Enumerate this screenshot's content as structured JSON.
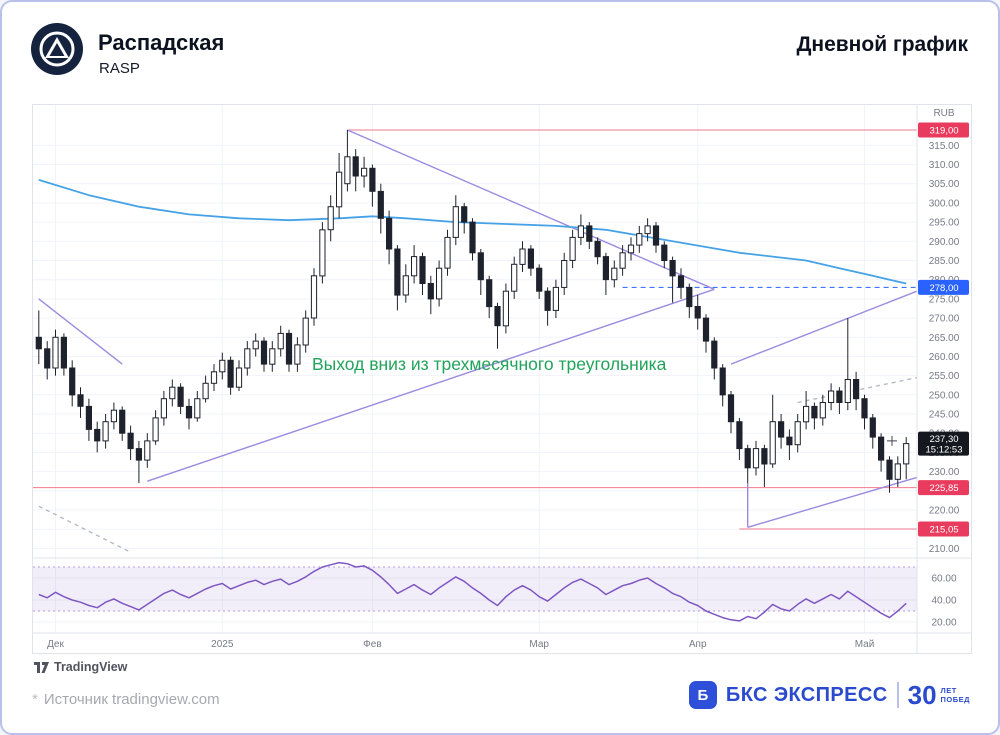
{
  "header": {
    "title": "Распадская",
    "ticker": "RASP",
    "chart_type": "Дневной график"
  },
  "watermark": {
    "label": "TradingView"
  },
  "footer": {
    "asterisk": "*",
    "source": "Источник tradingview.com",
    "brand": {
      "icon_letter": "Б",
      "name": "БКС ЭКСПРЕСС",
      "years": "30",
      "caption_line1": "ЛЕТ",
      "caption_line2": "ПОБЕД"
    }
  },
  "colors": {
    "grid": "#f0f3fa",
    "border": "#e0e3eb",
    "candle": "#1e222d",
    "ma": "#46a2e6",
    "trend": "#9c8be0",
    "dash_gray": "#b6b9c4",
    "level_red": "#f2798c",
    "badge_red": "#e93b5d",
    "level_blue": "#2962ff",
    "badge_dark": "#16181f",
    "indicator": "#7e57c2",
    "band_line": "#b39ddb",
    "band_fill": "rgba(126,87,194,0.10)",
    "annotation_green": "#22a35b",
    "axis_text": "#787b86",
    "page_border": "#b9c0ea",
    "brand_blue": "#2b4bce"
  },
  "chart_data": {
    "type": "candlestick",
    "symbol": "RASP",
    "timeframe": "Дневной график",
    "currency_unit": "RUB",
    "price_ylim": [
      207.5,
      325.5
    ],
    "price_axis": {
      "tick_start": 210,
      "tick_end": 315,
      "tick_step": 5,
      "unit": "RUB"
    },
    "annotation": {
      "text": "Выход вниз из трехмесячного треугольника",
      "i": 54,
      "price": 256.5,
      "color": "#22a35b"
    },
    "crosshair": {
      "i": 102.3,
      "price": 238
    },
    "price_labels": [
      {
        "value": "319,00",
        "price": 319,
        "type": "red"
      },
      {
        "value": "278,00",
        "price": 278,
        "type": "blue"
      },
      {
        "value": "237,30",
        "price": 237.3,
        "type": "current",
        "countdown": "15:12:53"
      },
      {
        "value": "225,85",
        "price": 225.85,
        "type": "red"
      },
      {
        "value": "215,05",
        "price": 215.05,
        "type": "red"
      }
    ],
    "hlines": [
      {
        "price": 319,
        "from": 37,
        "to": 999,
        "color": "red",
        "dash": false
      },
      {
        "price": 278,
        "from": 70,
        "to": 999,
        "color": "blue",
        "dash": true
      },
      {
        "price": 225.85,
        "from": -1,
        "to": 999,
        "color": "red",
        "dash": false
      },
      {
        "price": 215.05,
        "from": 84,
        "to": 999,
        "color": "red",
        "dash": false
      }
    ],
    "trendlines": [
      {
        "i1": 37,
        "p1": 319,
        "i2": 81,
        "p2": 277.5,
        "style": "solid"
      },
      {
        "i1": 13,
        "p1": 227.5,
        "i2": 81,
        "p2": 277.5,
        "style": "solid"
      },
      {
        "i1": 83,
        "p1": 258,
        "i2": 106,
        "p2": 277,
        "style": "solid"
      },
      {
        "i1": 85,
        "p1": 215.5,
        "i2": 106,
        "p2": 228.5,
        "style": "solid"
      },
      {
        "i1": 85,
        "p1": 227,
        "i2": 85,
        "p2": 215.5,
        "style": "solid"
      },
      {
        "i1": 0,
        "p1": 275,
        "i2": 10,
        "p2": 258,
        "style": "solid"
      },
      {
        "i1": 0,
        "p1": 221,
        "i2": 11,
        "p2": 209,
        "style": "dashed-gray"
      },
      {
        "i1": 91,
        "p1": 248,
        "i2": 106,
        "p2": 254.5,
        "style": "dashed-gray"
      }
    ],
    "ma": [
      [
        0,
        306
      ],
      [
        6,
        302
      ],
      [
        12,
        299
      ],
      [
        18,
        297
      ],
      [
        24,
        296
      ],
      [
        30,
        295.5
      ],
      [
        36,
        296
      ],
      [
        40,
        296.5
      ],
      [
        44,
        296
      ],
      [
        50,
        295
      ],
      [
        56,
        294.5
      ],
      [
        62,
        294
      ],
      [
        68,
        293
      ],
      [
        72,
        291.5
      ],
      [
        76,
        290
      ],
      [
        80,
        288.5
      ],
      [
        84,
        287
      ],
      [
        88,
        286
      ],
      [
        92,
        285
      ],
      [
        96,
        283
      ],
      [
        100,
        281
      ],
      [
        102,
        280
      ],
      [
        104,
        279
      ]
    ],
    "time_labels": [
      {
        "label": "Дек",
        "i": 2
      },
      {
        "label": "2025",
        "i": 22
      },
      {
        "label": "Фев",
        "i": 40
      },
      {
        "label": "Мар",
        "i": 60
      },
      {
        "label": "Апр",
        "i": 79
      },
      {
        "label": "Май",
        "i": 99
      }
    ],
    "candles": [
      [
        265,
        272,
        258,
        262
      ],
      [
        262,
        264,
        254,
        257
      ],
      [
        257,
        267,
        255,
        265
      ],
      [
        265,
        266,
        255,
        257
      ],
      [
        257,
        259,
        247,
        250
      ],
      [
        250,
        252,
        244,
        247
      ],
      [
        247,
        249,
        238,
        241
      ],
      [
        241,
        243,
        235,
        238
      ],
      [
        238,
        245,
        236,
        243
      ],
      [
        243,
        248,
        241,
        246
      ],
      [
        246,
        247,
        238,
        240
      ],
      [
        240,
        242,
        233,
        236
      ],
      [
        236,
        238,
        227,
        233
      ],
      [
        233,
        240,
        231,
        238
      ],
      [
        238,
        246,
        237,
        244
      ],
      [
        244,
        251,
        242,
        249
      ],
      [
        249,
        254,
        247,
        252
      ],
      [
        252,
        253,
        245,
        247
      ],
      [
        247,
        249,
        241,
        244
      ],
      [
        244,
        251,
        243,
        249
      ],
      [
        249,
        255,
        248,
        253
      ],
      [
        253,
        258,
        251,
        256
      ],
      [
        256,
        261,
        254,
        259
      ],
      [
        259,
        260,
        250,
        252
      ],
      [
        252,
        259,
        251,
        257
      ],
      [
        257,
        264,
        255,
        262
      ],
      [
        262,
        266,
        260,
        264
      ],
      [
        264,
        265,
        256,
        258
      ],
      [
        258,
        264,
        256,
        262
      ],
      [
        262,
        268,
        260,
        266
      ],
      [
        266,
        267,
        256,
        258
      ],
      [
        258,
        265,
        256,
        263
      ],
      [
        263,
        272,
        261,
        270
      ],
      [
        270,
        283,
        268,
        281
      ],
      [
        281,
        295,
        279,
        293
      ],
      [
        293,
        302,
        290,
        299
      ],
      [
        299,
        313,
        296,
        308
      ],
      [
        305,
        319,
        303,
        312
      ],
      [
        312,
        314,
        303,
        307
      ],
      [
        307,
        312,
        304,
        309
      ],
      [
        309,
        310,
        299,
        303
      ],
      [
        303,
        305,
        292,
        296
      ],
      [
        296,
        298,
        284,
        288
      ],
      [
        288,
        289,
        272,
        276
      ],
      [
        276,
        284,
        274,
        281
      ],
      [
        281,
        289,
        279,
        286
      ],
      [
        286,
        287,
        276,
        279
      ],
      [
        279,
        281,
        271,
        275
      ],
      [
        275,
        285,
        273,
        283
      ],
      [
        283,
        293,
        281,
        291
      ],
      [
        291,
        302,
        289,
        299
      ],
      [
        299,
        300,
        292,
        295
      ],
      [
        295,
        296,
        285,
        287
      ],
      [
        287,
        288,
        276,
        280
      ],
      [
        280,
        281,
        270,
        273
      ],
      [
        273,
        274,
        262,
        268
      ],
      [
        268,
        279,
        266,
        277
      ],
      [
        277,
        286,
        275,
        284
      ],
      [
        284,
        290,
        282,
        288
      ],
      [
        288,
        289,
        281,
        283
      ],
      [
        283,
        284,
        275,
        277
      ],
      [
        277,
        278,
        268,
        272
      ],
      [
        272,
        280,
        270,
        278
      ],
      [
        278,
        287,
        276,
        285
      ],
      [
        285,
        293,
        283,
        291
      ],
      [
        291,
        297,
        289,
        294
      ],
      [
        294,
        295,
        288,
        290
      ],
      [
        290,
        291,
        284,
        286
      ],
      [
        286,
        287,
        276,
        280
      ],
      [
        280,
        285,
        278,
        283
      ],
      [
        283,
        289,
        281,
        287
      ],
      [
        287,
        291,
        285,
        289
      ],
      [
        289,
        294,
        287,
        292
      ],
      [
        292,
        296,
        290,
        294
      ],
      [
        294,
        295,
        287,
        289
      ],
      [
        289,
        290,
        283,
        285
      ],
      [
        285,
        286,
        274,
        281
      ],
      [
        281,
        283,
        275,
        278
      ],
      [
        278,
        279,
        270,
        273
      ],
      [
        273,
        276,
        267,
        270
      ],
      [
        270,
        271,
        261,
        264
      ],
      [
        264,
        265,
        254,
        257
      ],
      [
        257,
        258,
        247,
        250
      ],
      [
        250,
        251,
        240,
        243
      ],
      [
        243,
        244,
        233,
        236
      ],
      [
        236,
        237,
        227,
        231
      ],
      [
        231,
        238,
        229,
        236
      ],
      [
        236,
        237,
        226,
        232
      ],
      [
        232,
        250,
        231,
        243
      ],
      [
        243,
        245,
        236,
        239
      ],
      [
        239,
        241,
        233,
        237
      ],
      [
        237,
        245,
        235,
        243
      ],
      [
        243,
        251,
        241,
        247
      ],
      [
        247,
        248,
        241,
        244
      ],
      [
        244,
        250,
        242,
        248
      ],
      [
        248,
        253,
        246,
        251
      ],
      [
        251,
        252,
        245,
        248
      ],
      [
        248,
        270,
        246,
        254
      ],
      [
        254,
        256,
        246,
        249
      ],
      [
        249,
        250,
        241,
        244
      ],
      [
        244,
        245,
        236,
        239
      ],
      [
        239,
        240,
        230,
        233
      ],
      [
        233,
        234,
        224.5,
        228
      ],
      [
        228,
        234,
        226,
        232
      ],
      [
        232,
        239,
        228,
        237.3
      ]
    ],
    "indicator": {
      "ticks": [
        60,
        40,
        20
      ],
      "bands": [
        70,
        30
      ],
      "values": [
        45,
        42,
        47,
        43,
        40,
        38,
        35,
        33,
        38,
        41,
        37,
        34,
        31,
        36,
        41,
        46,
        49,
        45,
        42,
        46,
        50,
        53,
        55,
        50,
        53,
        56,
        58,
        54,
        57,
        59,
        54,
        57,
        61,
        66,
        70,
        72,
        74,
        73,
        70,
        71,
        67,
        61,
        54,
        46,
        50,
        54,
        49,
        45,
        51,
        56,
        61,
        57,
        51,
        46,
        40,
        35,
        43,
        49,
        53,
        49,
        43,
        39,
        45,
        51,
        56,
        59,
        55,
        51,
        45,
        49,
        53,
        55,
        58,
        60,
        55,
        51,
        46,
        43,
        38,
        35,
        30,
        27,
        24,
        22,
        21,
        25,
        23,
        29,
        36,
        32,
        30,
        36,
        41,
        37,
        41,
        45,
        41,
        48,
        43,
        38,
        33,
        28,
        24,
        30,
        37
      ]
    }
  }
}
